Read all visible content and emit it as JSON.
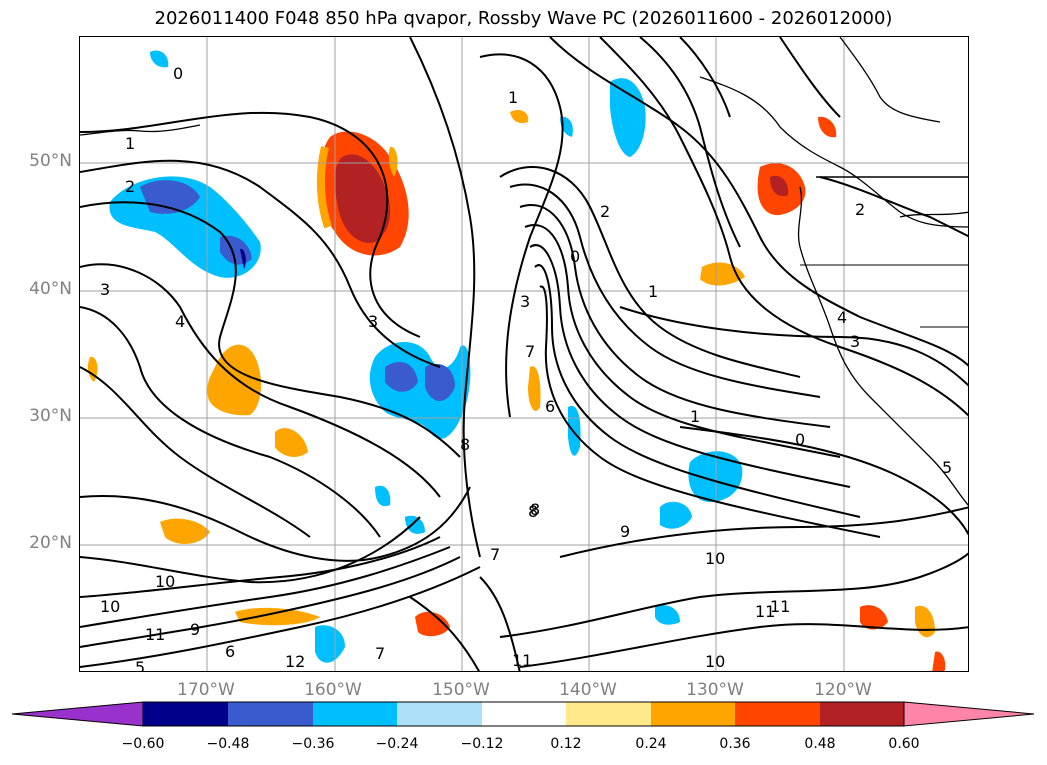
{
  "title": "2026011400 F048 850 hPa qvapor, Rossby Wave PC (2026011600 - 2026012000)",
  "lat_labels": [
    "50°N",
    "40°N",
    "30°N",
    "20°N"
  ],
  "lon_labels": [
    "170°W",
    "160°W",
    "150°W",
    "140°W",
    "130°W",
    "120°W"
  ],
  "colorbar": {
    "ticks": [
      "−0.60",
      "−0.48",
      "−0.36",
      "−0.24",
      "−0.12",
      "0.12",
      "0.24",
      "0.36",
      "0.48",
      "0.60"
    ],
    "colors": [
      "#9932CC",
      "#00008B",
      "#3A5BCD",
      "#00BFFF",
      "#ADE1F9",
      "#FFFFFF",
      "#FFE98A",
      "#FFA500",
      "#FF4500",
      "#B22222",
      "#FF85A8"
    ]
  },
  "contour_labels": [
    "0",
    "1",
    "2",
    "3",
    "4",
    "3",
    "1",
    "2",
    "3",
    "0",
    "1",
    "8",
    "6",
    "7",
    "8",
    "9",
    "10",
    "11",
    "10",
    "11",
    "10",
    "11",
    "7",
    "0",
    "1",
    "2",
    "3",
    "4",
    "5",
    "7",
    "8",
    "9",
    "10",
    "11",
    "12",
    "5",
    "6"
  ]
}
